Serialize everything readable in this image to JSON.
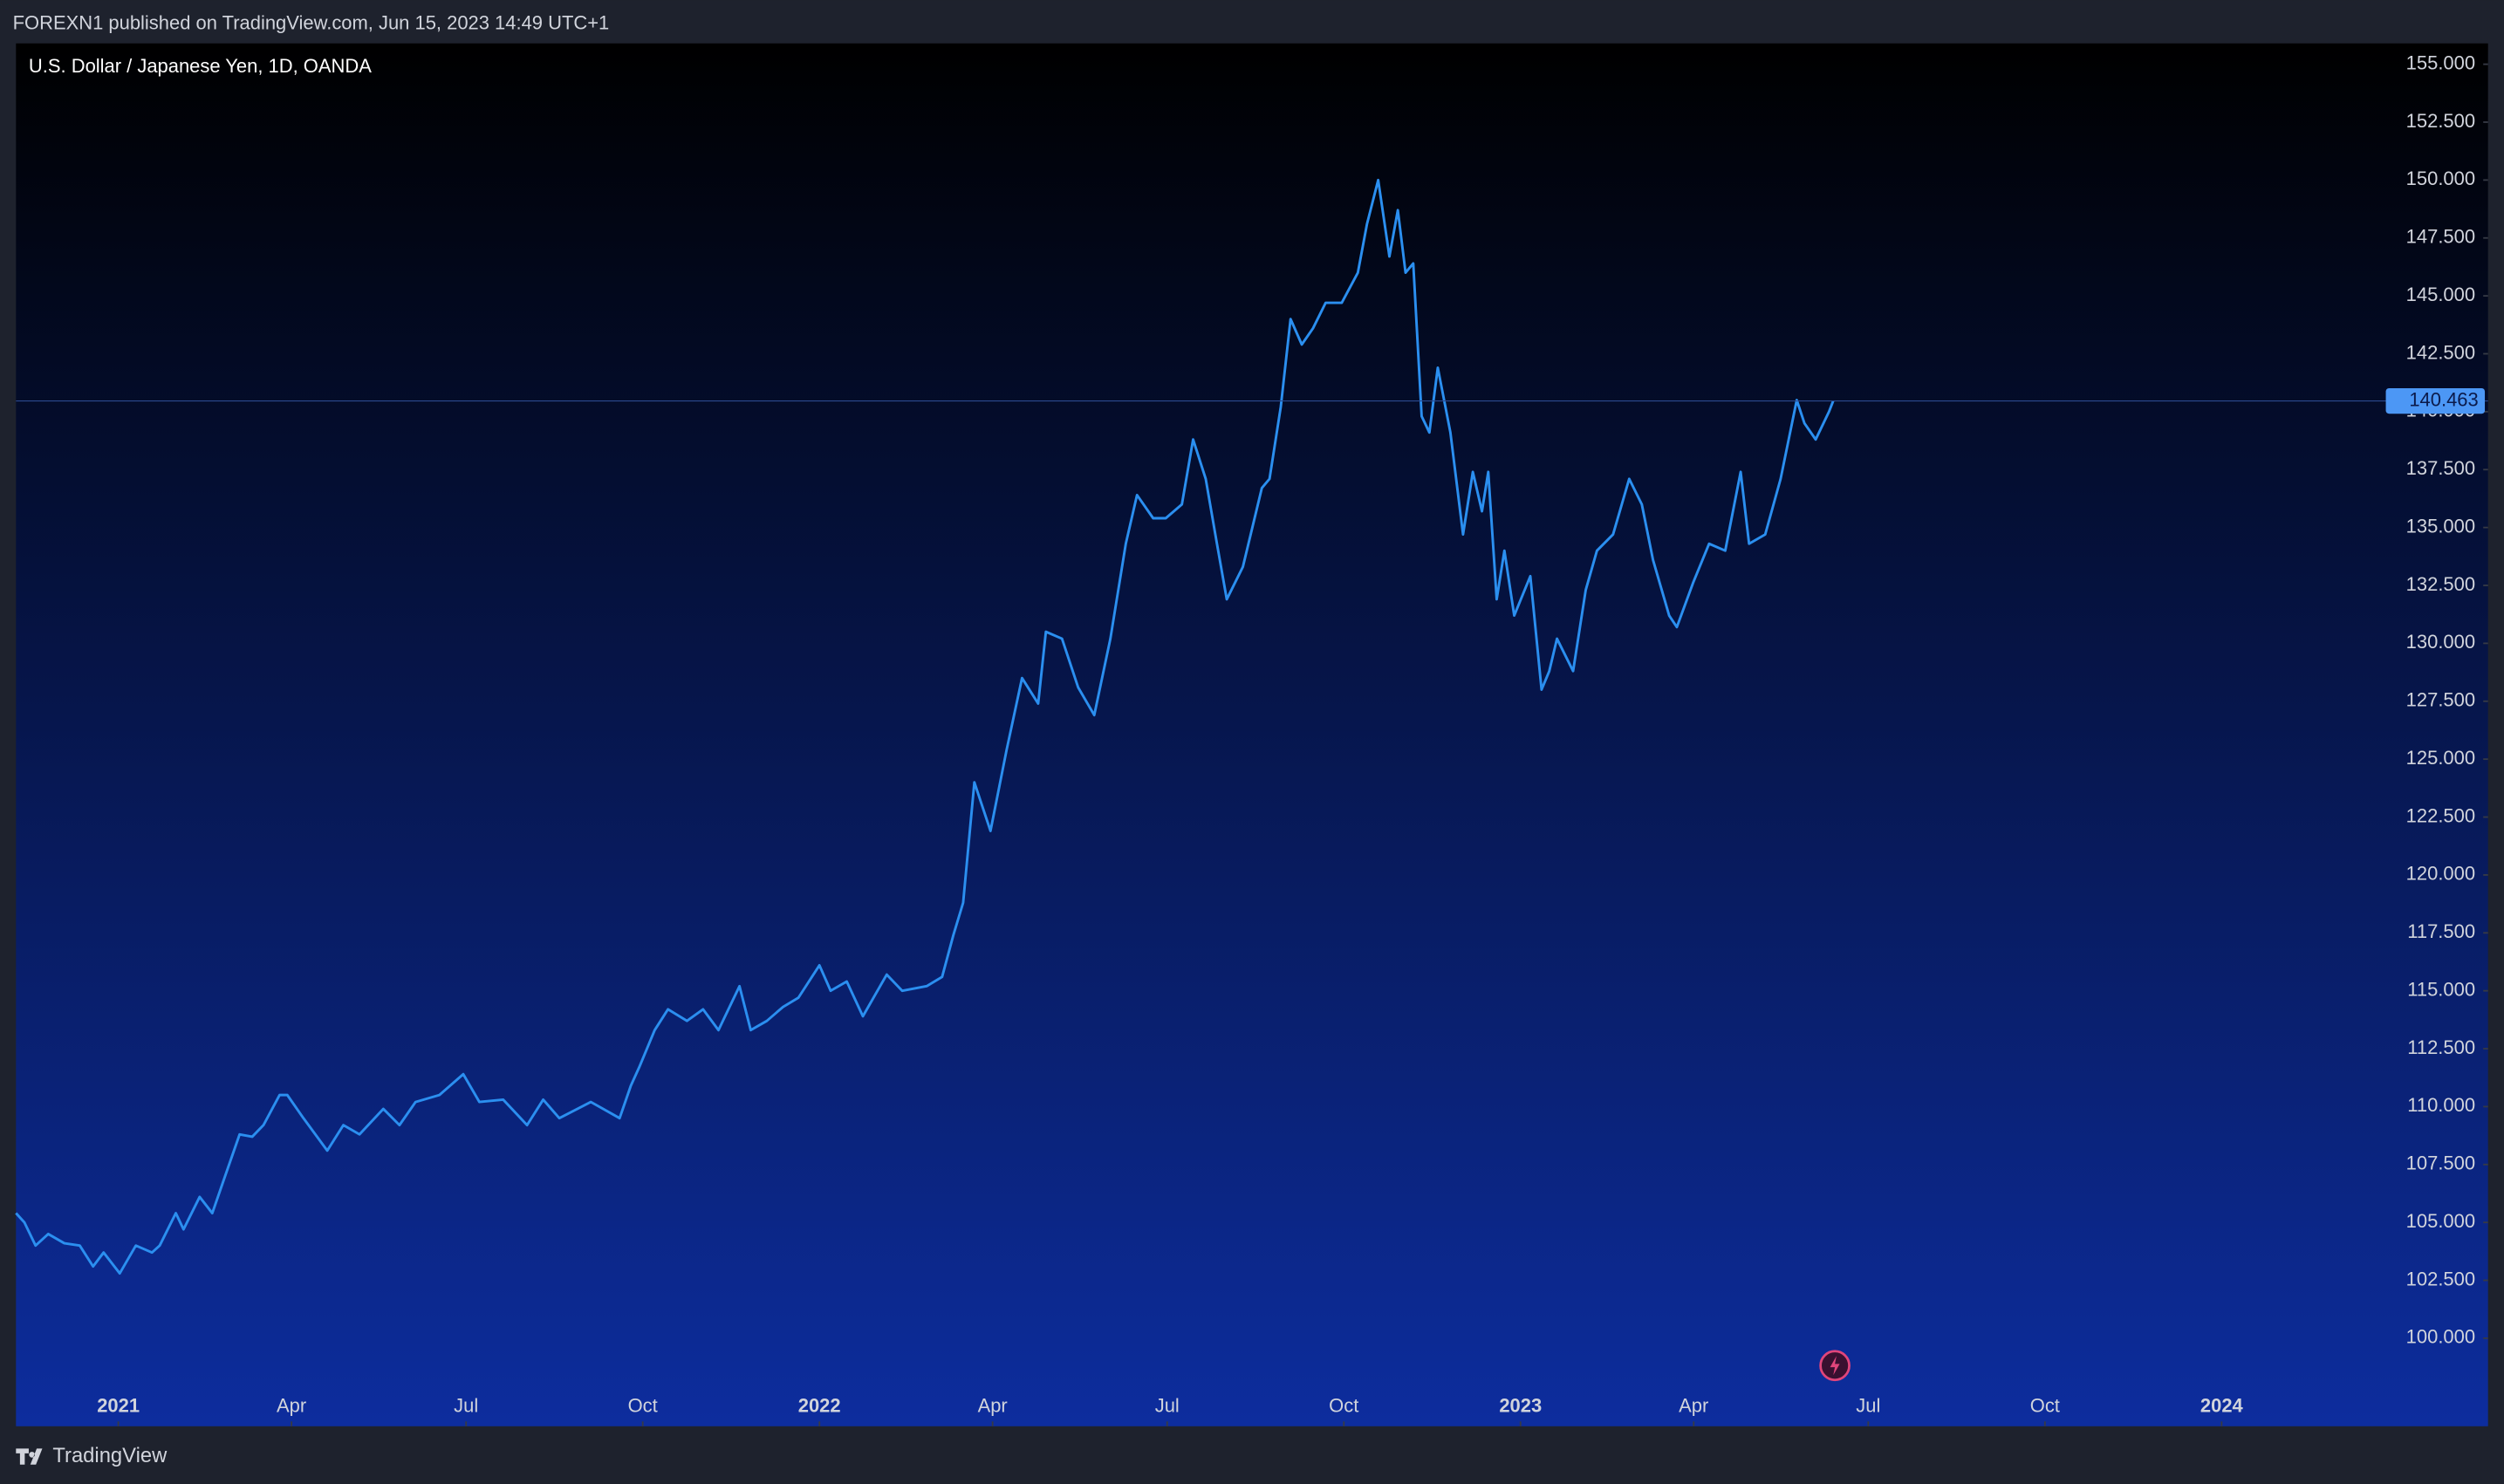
{
  "header": {
    "text": "FOREXN1 published on TradingView.com, Jun 15, 2023 14:49 UTC+1"
  },
  "footer": {
    "brand": "TradingView"
  },
  "chart_data": {
    "type": "line",
    "title": "U.S. Dollar / Japanese Yen, 1D, OANDA",
    "color": "#2b8ff0",
    "last_price": {
      "value": 140.463,
      "label": "140.463"
    },
    "xlim": [
      2020.854,
      2024.38
    ],
    "ylim": [
      96.2,
      155.9
    ],
    "xticks": [
      {
        "value": 2021.0,
        "label": "2021"
      },
      {
        "value": 2021.247,
        "label": "Apr"
      },
      {
        "value": 2021.496,
        "label": "Jul"
      },
      {
        "value": 2021.748,
        "label": "Oct"
      },
      {
        "value": 2022.0,
        "label": "2022"
      },
      {
        "value": 2022.247,
        "label": "Apr"
      },
      {
        "value": 2022.496,
        "label": "Jul"
      },
      {
        "value": 2022.748,
        "label": "Oct"
      },
      {
        "value": 2023.0,
        "label": "2023"
      },
      {
        "value": 2023.247,
        "label": "Apr"
      },
      {
        "value": 2023.496,
        "label": "Jul"
      },
      {
        "value": 2023.748,
        "label": "Oct"
      },
      {
        "value": 2024.0,
        "label": "2024"
      }
    ],
    "yticks": [
      {
        "value": 100,
        "label": "100.000"
      },
      {
        "value": 102.5,
        "label": "102.500"
      },
      {
        "value": 105,
        "label": "105.000"
      },
      {
        "value": 107.5,
        "label": "107.500"
      },
      {
        "value": 110,
        "label": "110.000"
      },
      {
        "value": 112.5,
        "label": "112.500"
      },
      {
        "value": 115,
        "label": "115.000"
      },
      {
        "value": 117.5,
        "label": "117.500"
      },
      {
        "value": 120,
        "label": "120.000"
      },
      {
        "value": 122.5,
        "label": "122.500"
      },
      {
        "value": 125,
        "label": "125.000"
      },
      {
        "value": 127.5,
        "label": "127.500"
      },
      {
        "value": 130,
        "label": "130.000"
      },
      {
        "value": 132.5,
        "label": "132.500"
      },
      {
        "value": 135,
        "label": "135.000"
      },
      {
        "value": 137.5,
        "label": "137.500"
      },
      {
        "value": 140,
        "label": "140.000"
      },
      {
        "value": 142.5,
        "label": "142.500"
      },
      {
        "value": 145,
        "label": "145.000"
      },
      {
        "value": 147.5,
        "label": "147.500"
      },
      {
        "value": 150,
        "label": "150.000"
      },
      {
        "value": 152.5,
        "label": "152.500"
      },
      {
        "value": 155,
        "label": "155.000"
      }
    ],
    "x": [
      2020.854,
      2020.866,
      2020.882,
      2020.9,
      2020.923,
      2020.945,
      2020.964,
      2020.979,
      2021.002,
      2021.025,
      2021.048,
      2021.059,
      2021.082,
      2021.093,
      2021.116,
      2021.134,
      2021.15,
      2021.173,
      2021.191,
      2021.207,
      2021.23,
      2021.241,
      2021.264,
      2021.298,
      2021.321,
      2021.344,
      2021.378,
      2021.401,
      2021.424,
      2021.458,
      2021.492,
      2021.515,
      2021.549,
      2021.583,
      2021.606,
      2021.629,
      2021.674,
      2021.715,
      2021.731,
      2021.743,
      2021.765,
      2021.784,
      2021.811,
      2021.834,
      2021.856,
      2021.886,
      2021.902,
      2021.925,
      2021.948,
      2021.97,
      2022.0,
      2022.016,
      2022.039,
      2022.062,
      2022.096,
      2022.118,
      2022.153,
      2022.175,
      2022.191,
      2022.205,
      2022.221,
      2022.244,
      2022.267,
      2022.289,
      2022.312,
      2022.323,
      2022.346,
      2022.369,
      2022.392,
      2022.415,
      2022.437,
      2022.453,
      2022.476,
      2022.494,
      2022.517,
      2022.533,
      2022.551,
      2022.567,
      2022.581,
      2022.604,
      2022.631,
      2022.642,
      2022.658,
      2022.672,
      2022.688,
      2022.704,
      2022.722,
      2022.745,
      2022.768,
      2022.781,
      2022.797,
      2022.813,
      2022.825,
      2022.836,
      2022.847,
      2022.859,
      2022.87,
      2022.882,
      2022.9,
      2022.918,
      2022.932,
      2022.945,
      2022.954,
      2022.966,
      2022.977,
      2022.991,
      2023.014,
      2023.03,
      2023.041,
      2023.052,
      2023.075,
      2023.093,
      2023.109,
      2023.132,
      2023.155,
      2023.173,
      2023.189,
      2023.212,
      2023.223,
      2023.246,
      2023.269,
      2023.292,
      2023.314,
      2023.326,
      2023.349,
      2023.371,
      2023.394,
      2023.405,
      2023.421,
      2023.44,
      2023.446
    ],
    "values": [
      105.4,
      105.0,
      104.0,
      104.5,
      104.1,
      104.0,
      103.1,
      103.7,
      102.8,
      104.0,
      103.7,
      104.0,
      105.4,
      104.7,
      106.1,
      105.4,
      106.8,
      108.8,
      108.7,
      109.2,
      110.5,
      110.5,
      109.5,
      108.1,
      109.2,
      108.8,
      109.9,
      109.2,
      110.2,
      110.5,
      111.4,
      110.2,
      110.3,
      109.2,
      110.3,
      109.5,
      110.2,
      109.5,
      110.9,
      111.7,
      113.3,
      114.2,
      113.7,
      114.2,
      113.3,
      115.2,
      113.3,
      113.7,
      114.3,
      114.7,
      116.1,
      115.0,
      115.4,
      113.9,
      115.7,
      115.0,
      115.2,
      115.6,
      117.4,
      118.8,
      124.0,
      121.9,
      125.4,
      128.5,
      127.4,
      130.5,
      130.2,
      128.1,
      126.9,
      130.2,
      134.3,
      136.4,
      135.4,
      135.4,
      136.0,
      138.8,
      137.1,
      134.3,
      131.9,
      133.3,
      136.7,
      137.1,
      140.2,
      144.0,
      142.9,
      143.6,
      144.7,
      144.7,
      146.0,
      148.1,
      150.0,
      146.7,
      148.7,
      146.0,
      146.4,
      139.8,
      139.1,
      141.9,
      139.1,
      134.7,
      137.4,
      135.7,
      137.4,
      131.9,
      134.0,
      131.2,
      132.9,
      128.0,
      128.8,
      130.2,
      128.8,
      132.3,
      134.0,
      134.7,
      137.1,
      136.0,
      133.6,
      131.2,
      130.7,
      132.6,
      134.3,
      134.0,
      137.4,
      134.3,
      134.7,
      137.1,
      140.5,
      139.5,
      138.8,
      140.0,
      140.463
    ]
  }
}
